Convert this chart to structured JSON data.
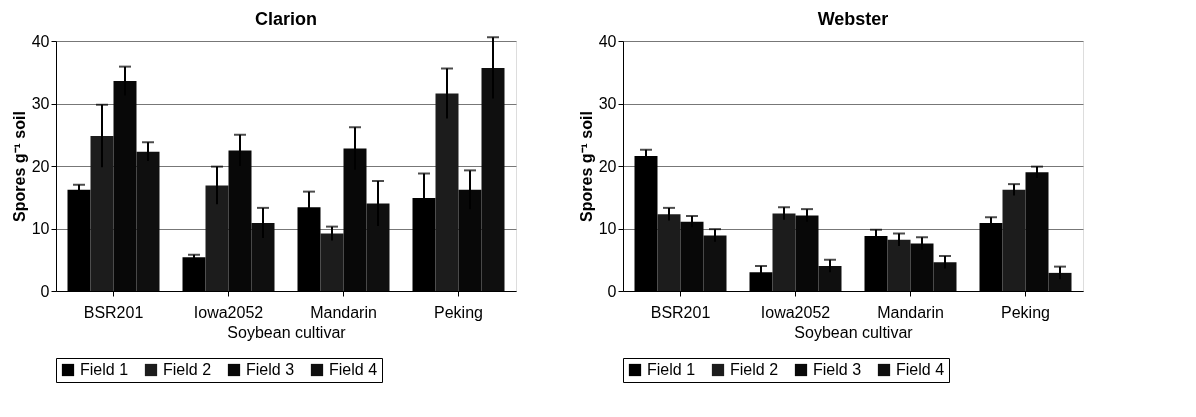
{
  "chart_data": [
    {
      "type": "bar",
      "title": "Clarion",
      "xlabel": "Soybean cultivar",
      "ylabel": "Spores g⁻¹ soil",
      "categories": [
        "BSR201",
        "Iowa2052",
        "Mandarin",
        "Peking"
      ],
      "series": [
        {
          "name": "Field 1",
          "color": "#000000",
          "values": [
            16.2,
            5.4,
            13.4,
            14.9
          ],
          "errors": [
            0.8,
            0.4,
            2.5,
            3.9
          ]
        },
        {
          "name": "Field 2",
          "color": "#1c1c1c",
          "values": [
            24.8,
            16.9,
            9.2,
            31.6
          ],
          "errors": [
            5.0,
            3.0,
            1.1,
            4.0
          ]
        },
        {
          "name": "Field 3",
          "color": "#080808",
          "values": [
            33.6,
            22.5,
            22.8,
            16.2
          ],
          "errors": [
            2.3,
            2.5,
            3.4,
            3.1
          ]
        },
        {
          "name": "Field 4",
          "color": "#0f0f0f",
          "values": [
            22.3,
            10.9,
            14.0,
            35.7
          ],
          "errors": [
            1.5,
            2.4,
            3.6,
            4.9
          ]
        }
      ],
      "ylim": [
        0,
        40
      ],
      "yticks": [
        0,
        10,
        20,
        30,
        40
      ],
      "grid": "y",
      "legend": "bottom"
    },
    {
      "type": "bar",
      "title": "Webster",
      "xlabel": "Soybean cultivar",
      "ylabel": "Spores g⁻¹ soil",
      "categories": [
        "BSR201",
        "Iowa2052",
        "Mandarin",
        "Peking"
      ],
      "series": [
        {
          "name": "Field 1",
          "color": "#000000",
          "values": [
            21.6,
            3.0,
            8.8,
            10.9
          ],
          "errors": [
            1.0,
            1.0,
            1.0,
            0.9
          ]
        },
        {
          "name": "Field 2",
          "color": "#1c1c1c",
          "values": [
            12.3,
            12.4,
            8.2,
            16.2
          ],
          "errors": [
            1.0,
            1.0,
            1.0,
            0.9
          ]
        },
        {
          "name": "Field 3",
          "color": "#080808",
          "values": [
            11.1,
            12.1,
            7.6,
            19.0
          ],
          "errors": [
            0.9,
            1.0,
            1.0,
            0.9
          ]
        },
        {
          "name": "Field 4",
          "color": "#0f0f0f",
          "values": [
            8.9,
            4.0,
            4.6,
            2.9
          ],
          "errors": [
            1.0,
            1.0,
            1.0,
            1.0
          ]
        }
      ],
      "ylim": [
        0,
        40
      ],
      "yticks": [
        0,
        10,
        20,
        30,
        40
      ],
      "grid": "y",
      "legend": "bottom"
    }
  ]
}
